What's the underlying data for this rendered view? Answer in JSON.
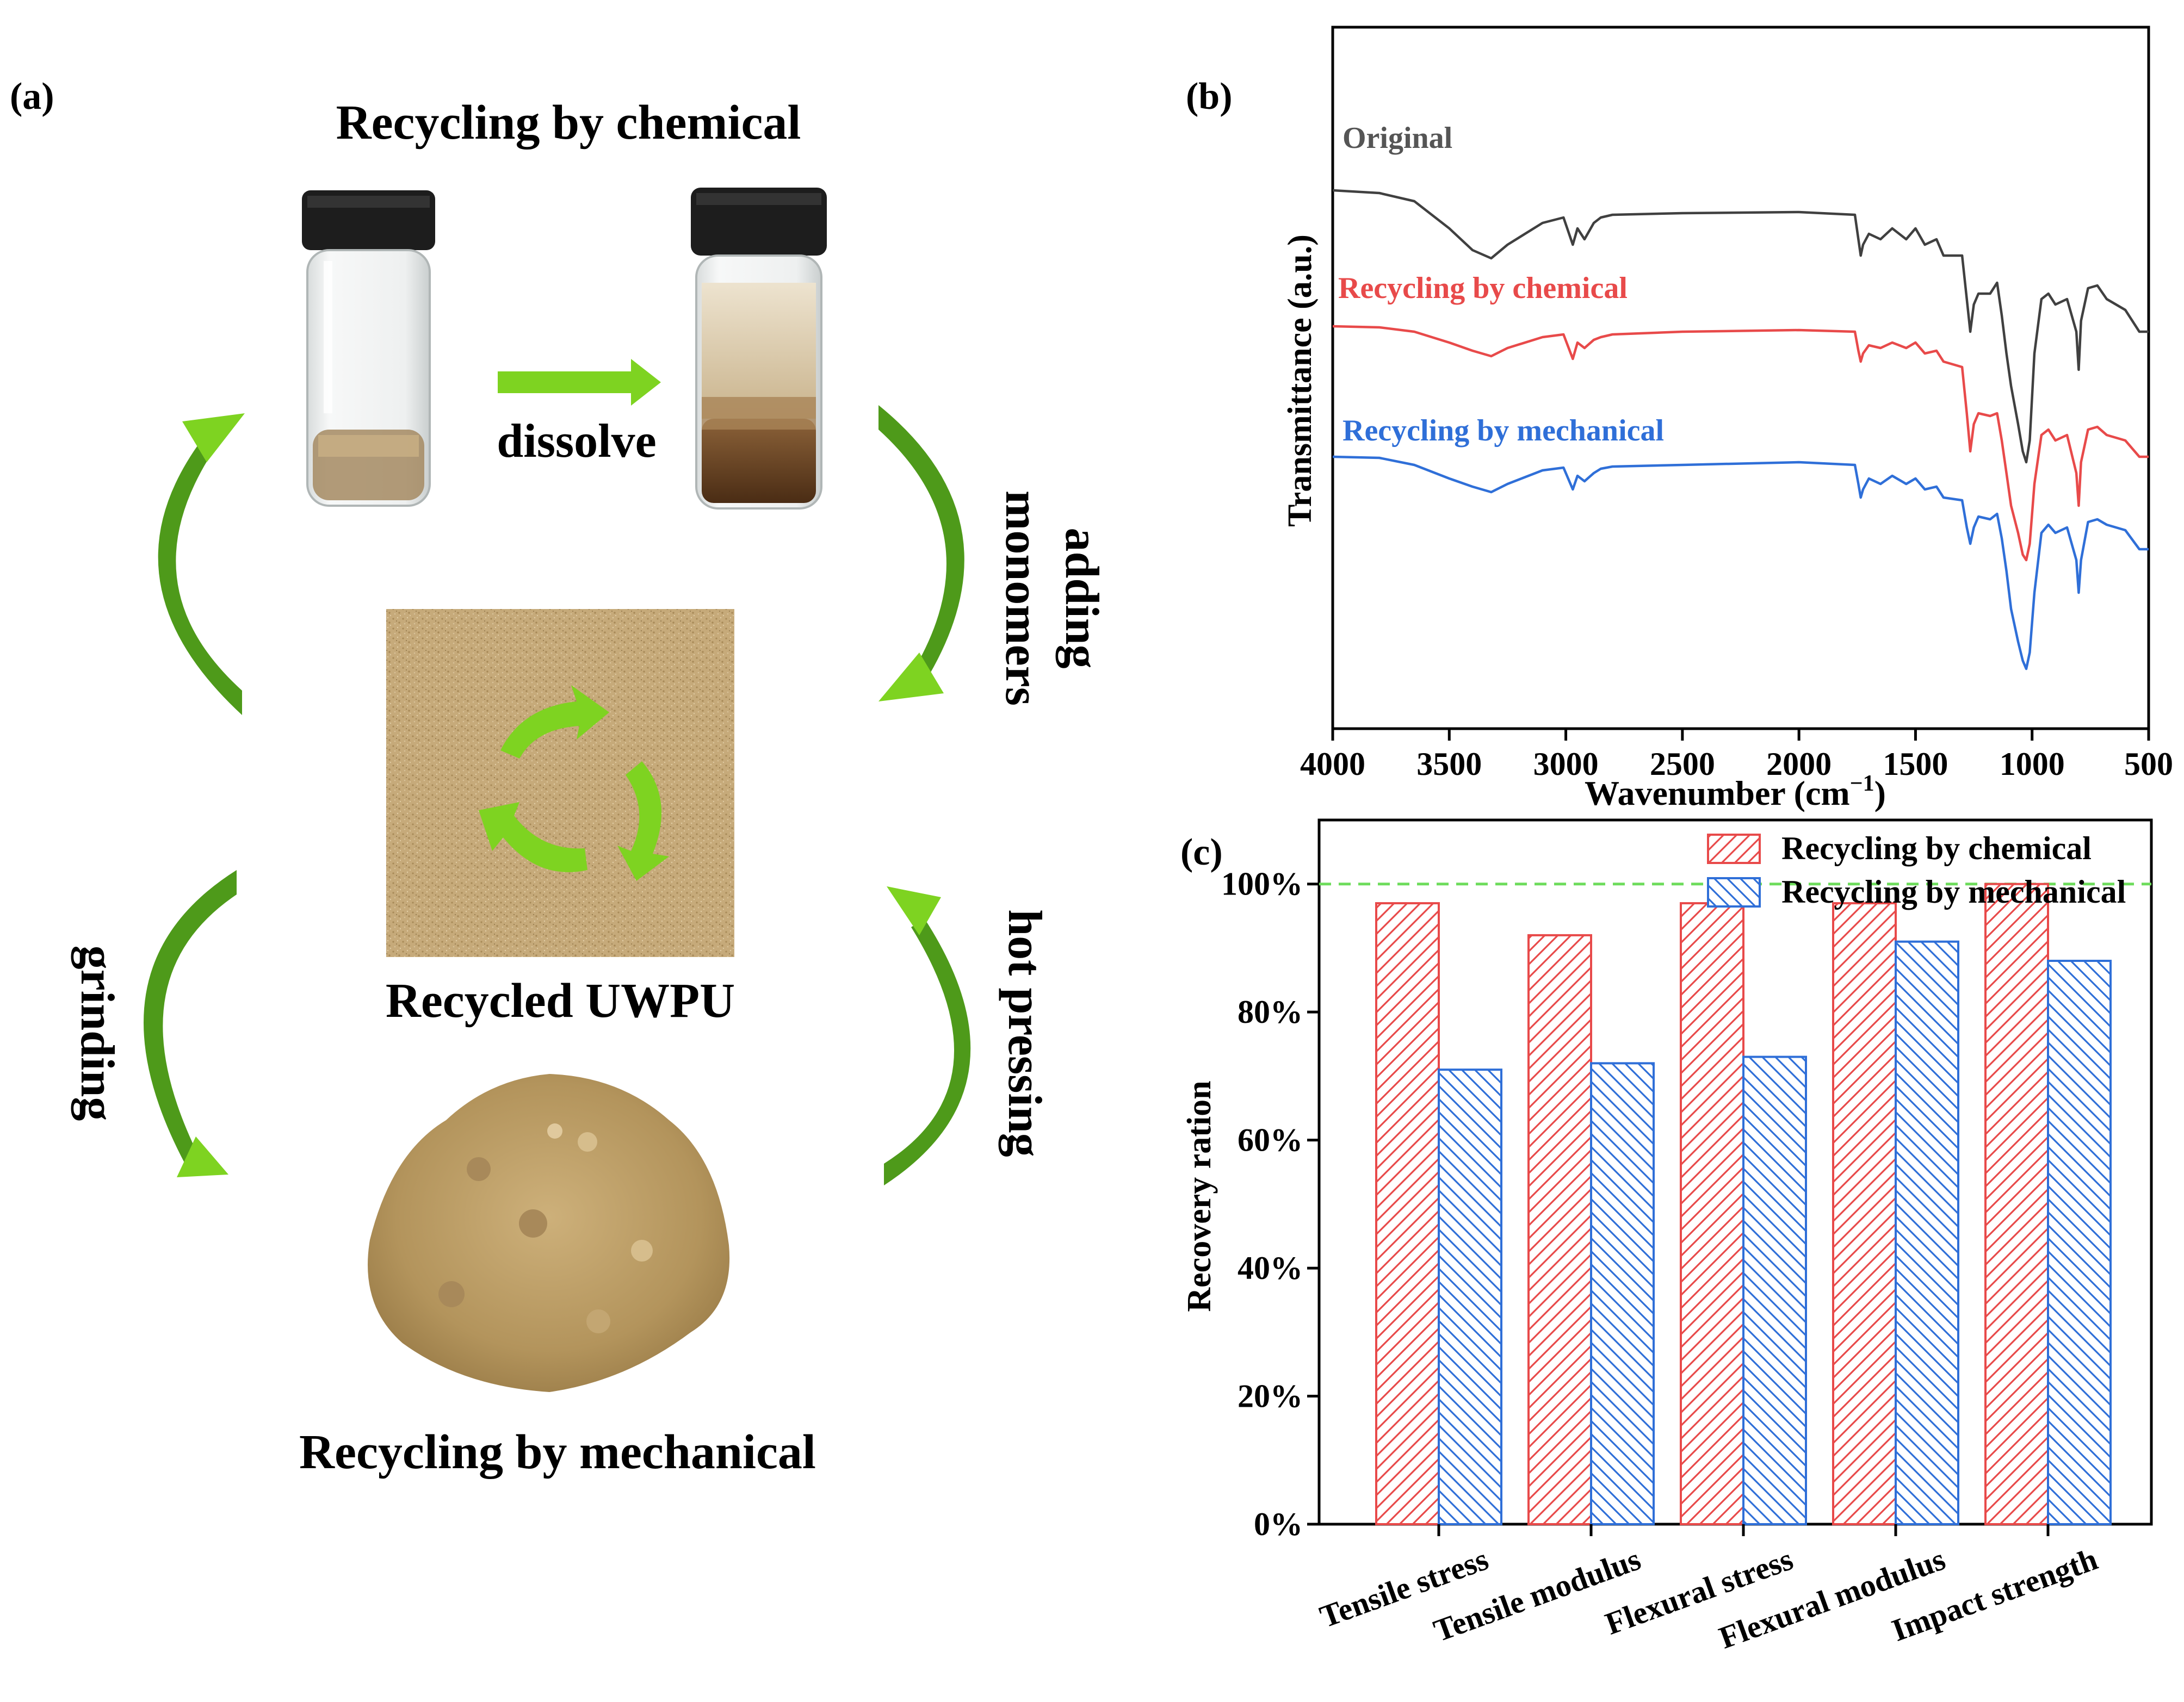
{
  "panel_a": {
    "label": "(a)",
    "title_top": "Recycling by chemical",
    "arrow_top": "dissolve",
    "arrow_right_top": [
      "adding",
      "monomers"
    ],
    "center_label": "Recycled UWPU",
    "arrow_left_bottom": "grinding",
    "arrow_right_bottom": "hot pressing",
    "title_bottom": "Recycling by mechanical",
    "colors": {
      "arrow_light": "#7ed321",
      "arrow_dark": "#4e9a1a",
      "jar_cap": "#1d1d1d",
      "sand": "#c6aa7a",
      "powder": "#b89a62"
    }
  },
  "chart_data": [
    {
      "panel_label": "(b)",
      "type": "line",
      "xlabel": "Wavenumber (cm",
      "xlabel_sup": "−1",
      "xlabel_end": ")",
      "ylabel": "Transmittance (a.u.)",
      "xlim": [
        4000,
        500
      ],
      "x_ticks": [
        4000,
        3500,
        3000,
        2500,
        2000,
        1500,
        1000,
        500
      ],
      "x_tick_labels": [
        "4000",
        "3500",
        "3000",
        "2500",
        "2000",
        "1500",
        "1000",
        "500"
      ],
      "y_ticks": false,
      "ylim": [
        0,
        100
      ],
      "series": [
        {
          "name": "Original",
          "color": "#404040",
          "x": [
            4000,
            3800,
            3650,
            3500,
            3400,
            3320,
            3250,
            3100,
            3010,
            2970,
            2950,
            2920,
            2880,
            2850,
            2800,
            2500,
            2000,
            1760,
            1745,
            1735,
            1725,
            1700,
            1650,
            1600,
            1540,
            1500,
            1460,
            1410,
            1380,
            1300,
            1280,
            1265,
            1250,
            1230,
            1180,
            1150,
            1130,
            1110,
            1090,
            1060,
            1040,
            1025,
            1010,
            990,
            960,
            930,
            900,
            850,
            810,
            800,
            790,
            760,
            720,
            680,
            600,
            540,
            500
          ],
          "y": [
            88,
            87.5,
            86,
            81,
            77,
            75.5,
            78,
            82,
            83,
            78,
            81,
            79,
            82,
            83,
            83.5,
            83.8,
            84,
            83.5,
            79,
            76,
            78,
            80,
            79,
            81,
            79,
            81,
            78,
            79,
            76,
            76,
            68,
            62,
            67,
            69,
            69,
            71,
            65,
            58,
            52,
            45,
            40,
            38,
            42,
            58,
            68,
            69,
            67,
            68,
            62,
            55,
            64,
            70,
            70.5,
            68,
            66,
            62,
            62
          ]
        },
        {
          "name": "Recycling by chemical",
          "color": "#e84a4a",
          "x": [
            4000,
            3800,
            3650,
            3500,
            3400,
            3320,
            3250,
            3100,
            3010,
            2970,
            2950,
            2920,
            2880,
            2850,
            2800,
            2500,
            2000,
            1760,
            1745,
            1735,
            1725,
            1700,
            1650,
            1600,
            1540,
            1500,
            1460,
            1410,
            1380,
            1300,
            1280,
            1265,
            1250,
            1230,
            1180,
            1150,
            1130,
            1110,
            1090,
            1060,
            1040,
            1025,
            1010,
            990,
            960,
            930,
            900,
            850,
            810,
            800,
            790,
            760,
            720,
            680,
            600,
            540,
            500
          ],
          "y": [
            63,
            62.8,
            62,
            60,
            58.5,
            57.5,
            59,
            61,
            61.5,
            57,
            60,
            59,
            60.5,
            61,
            61.5,
            62,
            62.3,
            62,
            58.5,
            56.5,
            58,
            59.5,
            59,
            60,
            59,
            60,
            58,
            58.5,
            56.5,
            55.5,
            47,
            40,
            45,
            47,
            46.5,
            47,
            42,
            36,
            30,
            25,
            21,
            20,
            23,
            34,
            43,
            44,
            42,
            43,
            36,
            30,
            38,
            44,
            44.5,
            43,
            42,
            39,
            39
          ]
        },
        {
          "name": "Recycling by mechanical",
          "color": "#2f6fd8",
          "x": [
            4000,
            3800,
            3650,
            3500,
            3400,
            3320,
            3250,
            3100,
            3010,
            2970,
            2950,
            2920,
            2880,
            2850,
            2800,
            2500,
            2000,
            1760,
            1745,
            1735,
            1725,
            1700,
            1650,
            1600,
            1540,
            1500,
            1460,
            1410,
            1380,
            1300,
            1280,
            1265,
            1250,
            1230,
            1180,
            1150,
            1130,
            1110,
            1090,
            1060,
            1040,
            1025,
            1010,
            990,
            960,
            930,
            900,
            850,
            810,
            800,
            790,
            760,
            720,
            680,
            600,
            540,
            500
          ],
          "y": [
            39,
            38.8,
            37.5,
            35,
            33.5,
            32.5,
            34,
            36.5,
            37,
            33,
            35.5,
            34.5,
            36,
            36.8,
            37.2,
            37.5,
            38,
            37.5,
            34,
            31.5,
            33,
            35,
            34,
            35.5,
            34,
            35,
            33,
            33.5,
            31.5,
            31,
            26,
            23,
            26,
            28,
            27.5,
            28.5,
            24,
            18,
            11,
            5,
            1.5,
            0,
            3,
            14,
            25,
            26.5,
            25,
            26,
            20,
            14,
            20,
            27,
            27.5,
            26.5,
            25.5,
            22,
            22
          ]
        }
      ],
      "annotations": [
        "Original",
        "Recycling by chemical",
        "Recycling by mechanical"
      ]
    },
    {
      "panel_label": "(c)",
      "type": "bar",
      "ylabel": "Recovery ration",
      "ylim": [
        0,
        1.1
      ],
      "y_ticks": [
        0,
        0.2,
        0.4,
        0.6,
        0.8,
        1.0
      ],
      "y_tick_labels": [
        "0%",
        "20%",
        "40%",
        "60%",
        "80%",
        "100%"
      ],
      "reference_line": 1.0,
      "reference_color": "#6edc5c",
      "categories": [
        "Tensile stress",
        "Tensile modulus",
        "Flexural stress",
        "Flexural modulus",
        "Impact strength"
      ],
      "series": [
        {
          "name": "Recycling by chemical",
          "color": "#e84a4a",
          "hatch": "diagonal-up",
          "values": [
            0.97,
            0.92,
            0.97,
            0.97,
            1.0
          ]
        },
        {
          "name": "Recycling by mechanical",
          "color": "#2f6fd8",
          "hatch": "diagonal-down",
          "values": [
            0.71,
            0.72,
            0.73,
            0.91,
            0.88
          ]
        }
      ],
      "legend_position": "top-right"
    }
  ]
}
